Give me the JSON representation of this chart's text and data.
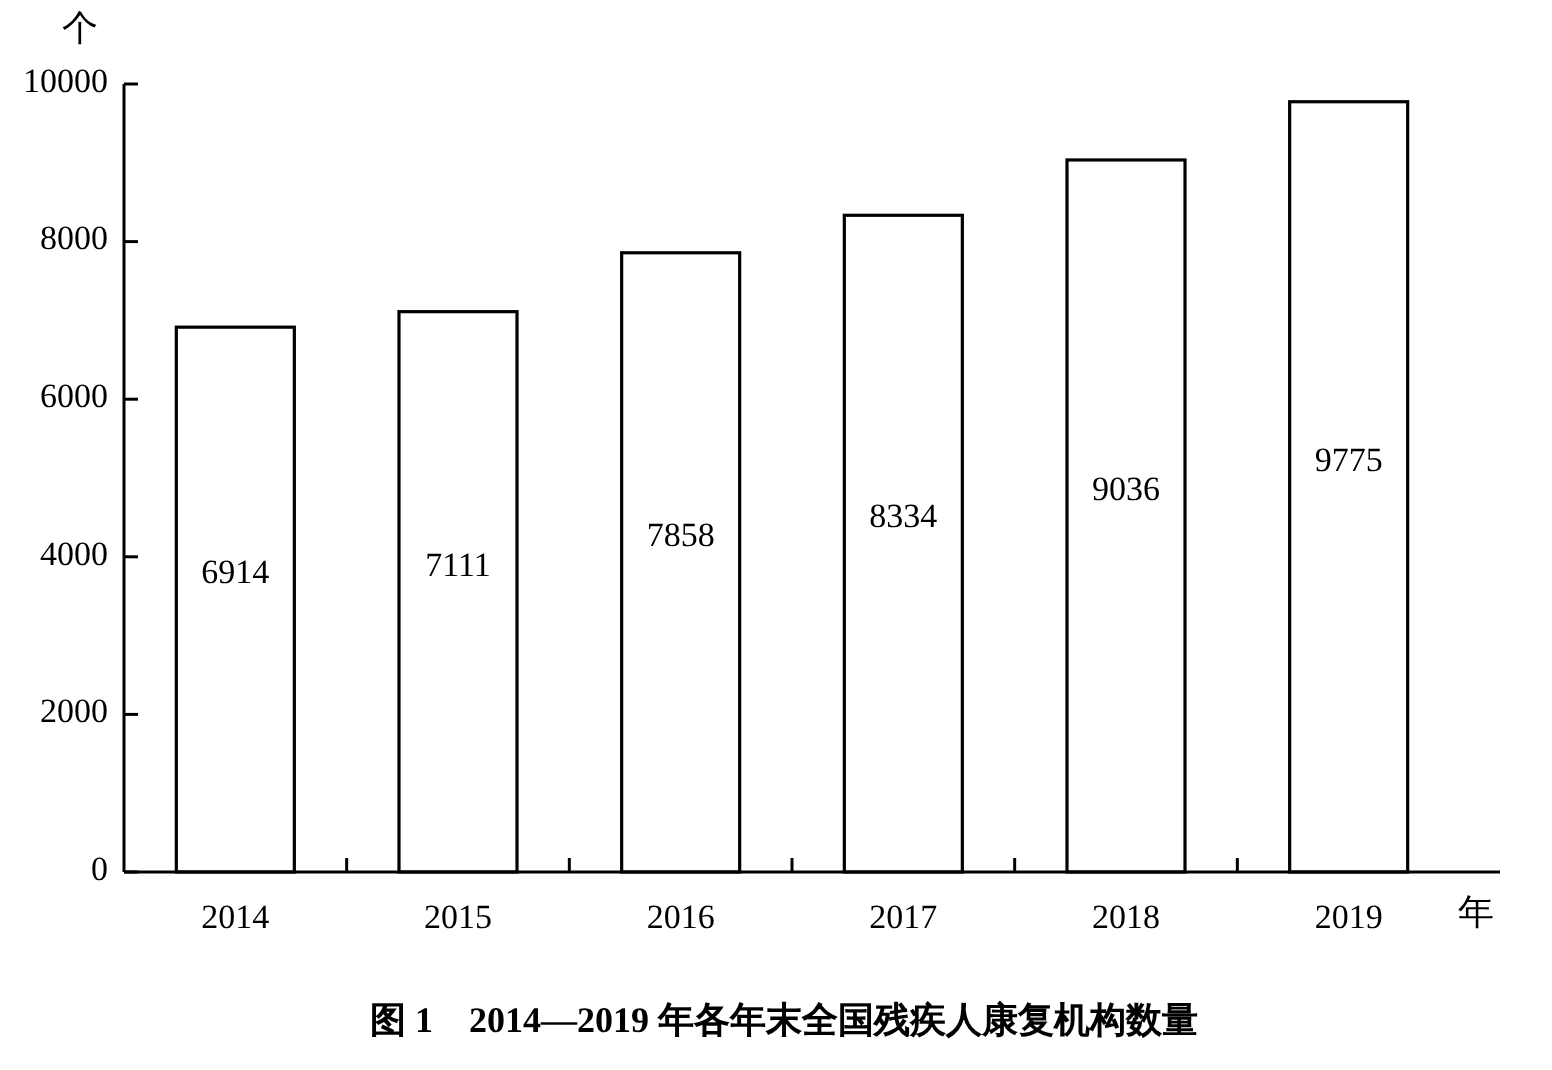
{
  "chart_data": {
    "type": "bar",
    "title": "图 1　2014—2019 年各年末全国残疾人康复机构数量",
    "ylabel": "个",
    "xlabel": "年",
    "categories": [
      "2014",
      "2015",
      "2016",
      "2017",
      "2018",
      "2019"
    ],
    "values": [
      6914,
      7111,
      7858,
      8334,
      9036,
      9775
    ],
    "color": "#ffffff",
    "ylim": [
      0,
      10000
    ],
    "yticks": [
      0,
      2000,
      4000,
      6000,
      8000,
      10000
    ],
    "data_labels": true,
    "grid": false
  }
}
